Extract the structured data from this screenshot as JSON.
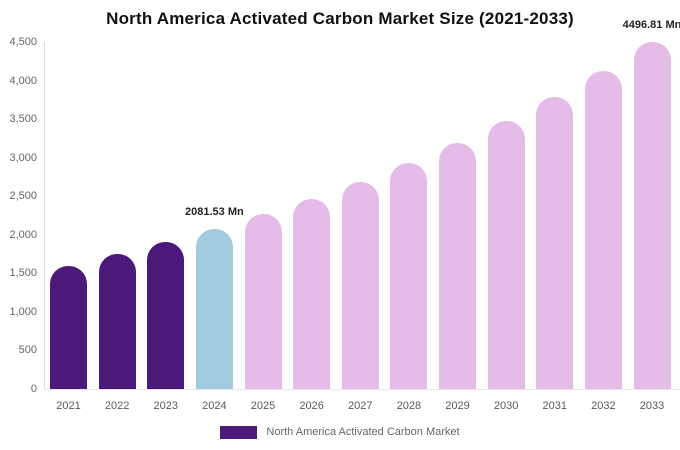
{
  "title": "North America Activated Carbon Market Size (2021-2033)",
  "colors": {
    "historical_bar": "#4B1979",
    "current_bar": "#A3CBE0",
    "forecast_bar": "#E5BCE7",
    "axis_line": "#DDDDDD",
    "baseline": "#E8E8E8",
    "tick_text": "#666666",
    "annotation_text": "#222222",
    "background": "#FFFFFF"
  },
  "chart_data": {
    "type": "bar",
    "title": "North America Activated Carbon Market Size (2021-2033)",
    "xlabel": "",
    "ylabel": "",
    "unit": "Mn",
    "ylim": [
      0,
      4500
    ],
    "ytick_step": 500,
    "yticks": [
      "0",
      "500",
      "1,000",
      "1,500",
      "2,000",
      "2,500",
      "3,000",
      "3,500",
      "4,000",
      "4,500"
    ],
    "grid": false,
    "categories": [
      "2021",
      "2022",
      "2023",
      "2024",
      "2025",
      "2026",
      "2027",
      "2028",
      "2029",
      "2030",
      "2031",
      "2032",
      "2033"
    ],
    "series": [
      {
        "name": "North America Activated Carbon Market",
        "values": [
          1600,
          1745,
          1912,
          2081.53,
          2268,
          2470,
          2691,
          2932,
          3194,
          3479,
          3790,
          4129,
          4496.81
        ],
        "color_keys": [
          "historical",
          "historical",
          "historical",
          "current",
          "forecast",
          "forecast",
          "forecast",
          "forecast",
          "forecast",
          "forecast",
          "forecast",
          "forecast",
          "forecast"
        ]
      }
    ],
    "annotations": [
      {
        "category": "2024",
        "text": "2081.53 Mn"
      },
      {
        "category": "2033",
        "text": "4496.81 Mn"
      }
    ],
    "legend_position": "bottom-center"
  },
  "legend": {
    "label": "North America Activated Carbon Market"
  }
}
